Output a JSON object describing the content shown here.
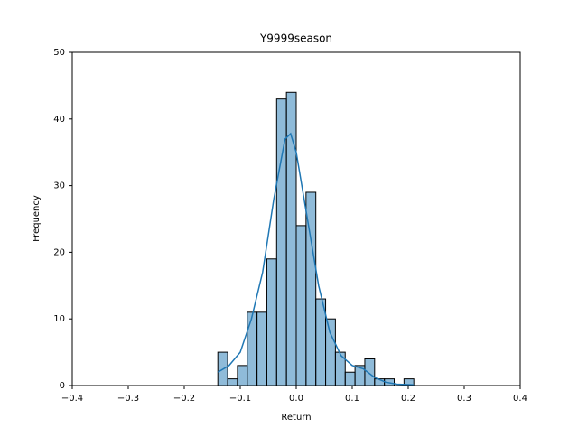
{
  "chart_data": {
    "type": "histogram",
    "title": "Y9999season",
    "x_label": "Return",
    "y_label": "Frequency",
    "bins": [
      -0.14,
      -0.1225,
      -0.105,
      -0.0875,
      -0.07,
      -0.0525,
      -0.035,
      -0.0175,
      0,
      0.0175,
      0.035,
      0.0525,
      0.07,
      0.0875,
      0.105,
      0.1225,
      0.14,
      0.1575,
      0.175,
      0.1925,
      0.21
    ],
    "values": [
      5,
      1,
      3,
      11,
      11,
      19,
      43,
      44,
      24,
      29,
      13,
      10,
      5,
      2,
      3,
      4,
      1,
      1,
      0,
      1
    ],
    "color": "rgba(31,119,180,0.5)",
    "edge_color": "#000000",
    "kde": {
      "color": "#1f77b4",
      "x": [
        -0.14,
        -0.12,
        -0.1,
        -0.08,
        -0.06,
        -0.04,
        -0.02,
        -0.01,
        0,
        0.02,
        0.04,
        0.06,
        0.08,
        0.1,
        0.12,
        0.14,
        0.16,
        0.18,
        0.21
      ],
      "values": [
        2,
        3,
        5,
        10,
        17,
        28,
        37,
        37.8,
        35,
        25,
        15,
        8,
        4.5,
        3,
        2.5,
        1.2,
        0.5,
        0.2,
        0.1
      ]
    },
    "xlim": [
      -0.4,
      0.4
    ],
    "xticks": [
      {
        "value": -0.4,
        "label": "−0.4"
      },
      {
        "value": -0.3,
        "label": "−0.3"
      },
      {
        "value": -0.2,
        "label": "−0.2"
      },
      {
        "value": -0.1,
        "label": "−0.1"
      },
      {
        "value": 0,
        "label": "0.0"
      },
      0.1,
      0.2,
      0.3,
      0.4
    ],
    "ylim": [
      0,
      50
    ],
    "yticks": [
      0,
      10,
      20,
      30,
      40,
      50
    ]
  }
}
